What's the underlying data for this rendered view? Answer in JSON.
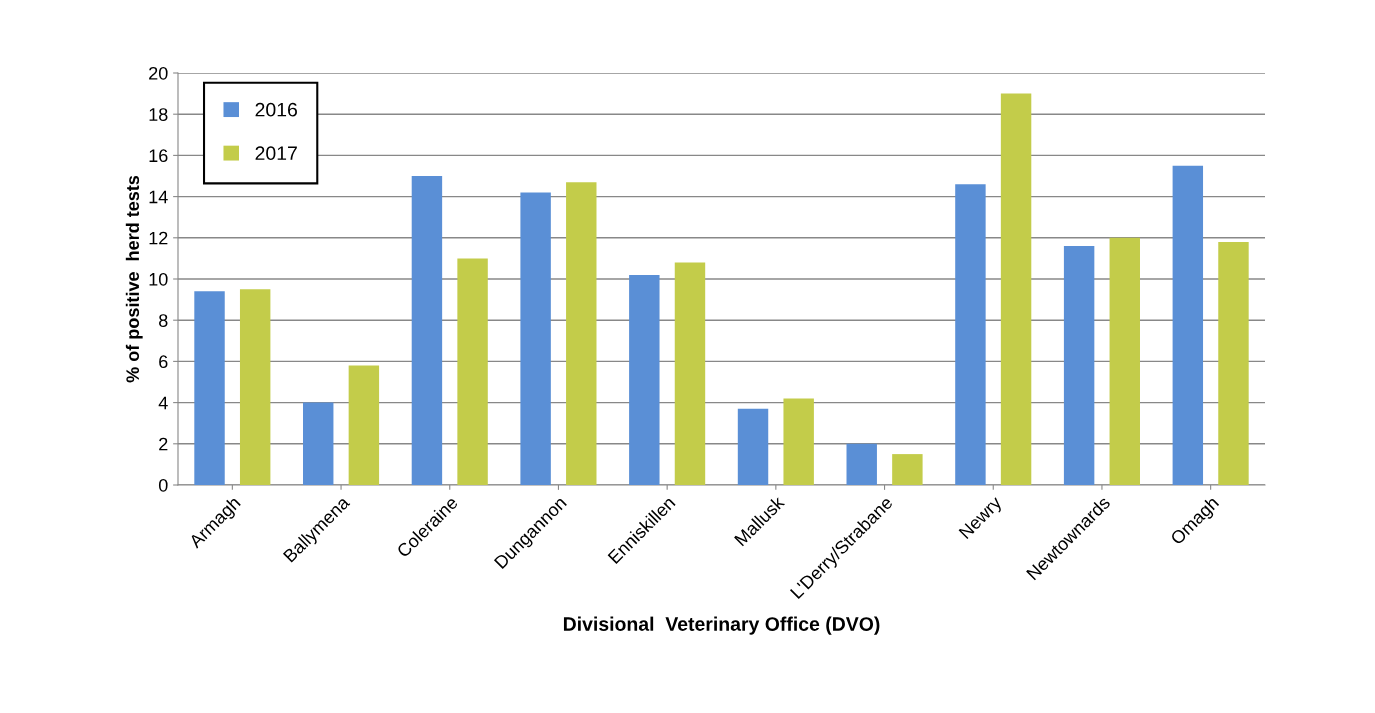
{
  "chart_data": {
    "type": "bar",
    "xlabel": "Divisional  Veterinary Office (DVO)",
    "ylabel": "% of positive  herd tests",
    "categories": [
      "Armagh",
      "Ballymena",
      "Coleraine",
      "Dungannon",
      "Enniskillen",
      "Mallusk",
      "L'Derry/Strabane",
      "Newry",
      "Newtownards",
      "Omagh"
    ],
    "series": [
      {
        "name": "2016",
        "color": "#5a8fd6",
        "values": [
          9.4,
          4.0,
          15.0,
          14.2,
          10.2,
          3.7,
          2.0,
          14.6,
          11.6,
          15.5
        ]
      },
      {
        "name": "2017",
        "color": "#c3cc4a",
        "values": [
          9.5,
          5.8,
          11.0,
          14.7,
          10.8,
          4.2,
          1.5,
          19.0,
          12.0,
          11.8
        ]
      }
    ],
    "ylim": [
      0,
      20
    ],
    "yticks": [
      0,
      2,
      4,
      6,
      8,
      10,
      12,
      14,
      16,
      18,
      20
    ],
    "grid": "y",
    "legend": "top left"
  }
}
